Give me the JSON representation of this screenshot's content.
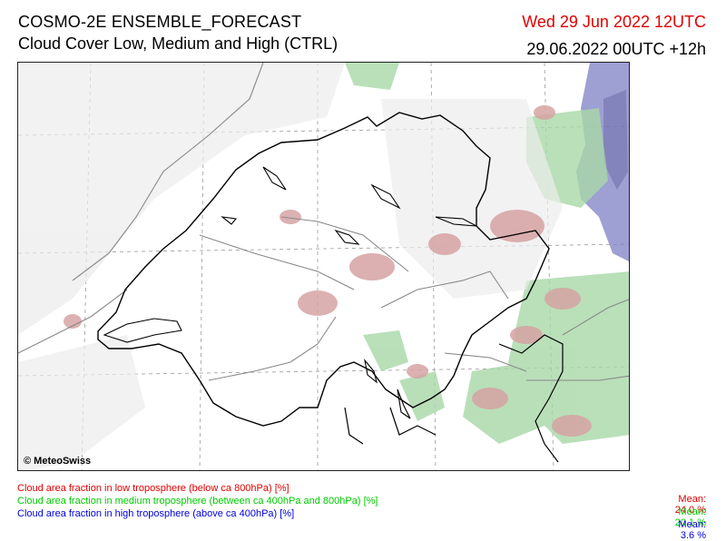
{
  "header": {
    "title": "COSMO-2E ENSEMBLE_FORECAST",
    "subtitle": "Cloud Cover Low, Medium and High (CTRL)",
    "valid_time": "Wed 29 Jun 2022 12UTC",
    "run_info": "29.06.2022 00UTC +12h",
    "valid_time_color": "#e00000"
  },
  "map": {
    "copyright": "© MeteoSwiss",
    "colors": {
      "low": "#d6a3a3",
      "medium": "#a8d8a8",
      "high": "#7d7fc4",
      "border": "#000000",
      "river": "#888888",
      "grid": "#999999"
    }
  },
  "legend": [
    {
      "label": "Cloud area fraction in low troposphere (below ca 800hPa) [%]",
      "mean_label": "Mean:",
      "mean_value": "24.0 %",
      "color": "#e00000"
    },
    {
      "label": "Cloud area fraction in medium troposphere (between ca 400hPa and 800hPa) [%]",
      "mean_label": "Mean:",
      "mean_value": "20.1 %",
      "color": "#00cc00"
    },
    {
      "label": "Cloud area fraction in high troposphere (above ca 400hPa) [%]",
      "mean_label": "Mean:",
      "mean_value": "3.6 %",
      "color": "#0000dd"
    }
  ]
}
